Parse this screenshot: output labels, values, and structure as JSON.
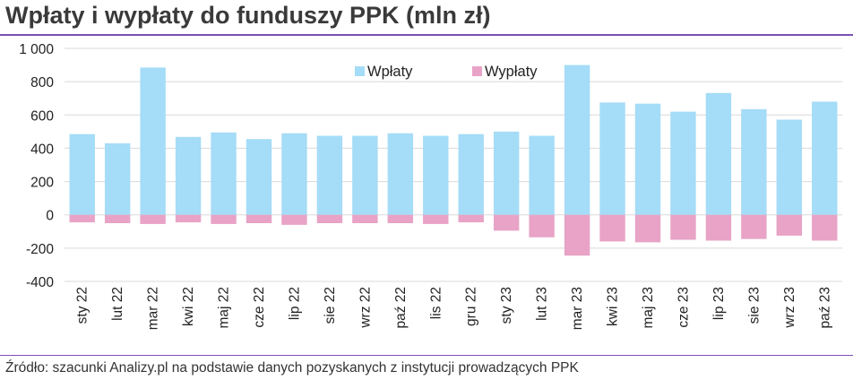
{
  "title": "Wpłaty i wypłaty do funduszy PPK (mln zł)",
  "source": "Źródło: szacunki Analizy.pl na podstawie danych pozyskanych z instytucji prowadzących PPK",
  "colors": {
    "wplaty": "#a5dcf7",
    "wyplaty": "#e8a3c6",
    "rule": "#7b4fb3",
    "grid": "#d9d9d9"
  },
  "chart_data": {
    "type": "bar",
    "categories": [
      "sty 22",
      "lut 22",
      "mar 22",
      "kwi 22",
      "maj 22",
      "cze 22",
      "lip 22",
      "sie 22",
      "wrz 22",
      "paź 22",
      "lis 22",
      "gru 22",
      "sty 23",
      "lut 23",
      "mar 23",
      "kwi 23",
      "maj 23",
      "cze 23",
      "lip 23",
      "sie 23",
      "wrz 23",
      "paź 23"
    ],
    "series": [
      {
        "name": "Wpłaty",
        "color": "#a5dcf7",
        "values": [
          485,
          430,
          885,
          468,
          495,
          455,
          490,
          475,
          475,
          490,
          475,
          485,
          500,
          475,
          900,
          675,
          668,
          620,
          732,
          635,
          572,
          680
        ]
      },
      {
        "name": "Wypłaty",
        "color": "#e8a3c6",
        "values": [
          -45,
          -50,
          -55,
          -45,
          -55,
          -50,
          -60,
          -50,
          -50,
          -50,
          -55,
          -45,
          -95,
          -135,
          -245,
          -160,
          -165,
          -150,
          -155,
          -145,
          -125,
          -155
        ]
      }
    ],
    "yticks": [
      "1 000",
      "800",
      "600",
      "400",
      "200",
      "0",
      "-200",
      "-400"
    ],
    "ytick_values": [
      1000,
      800,
      600,
      400,
      200,
      0,
      -200,
      -400
    ],
    "ylim": [
      -400,
      1000
    ],
    "legend_position": "top-center",
    "grid": "horizontal"
  }
}
